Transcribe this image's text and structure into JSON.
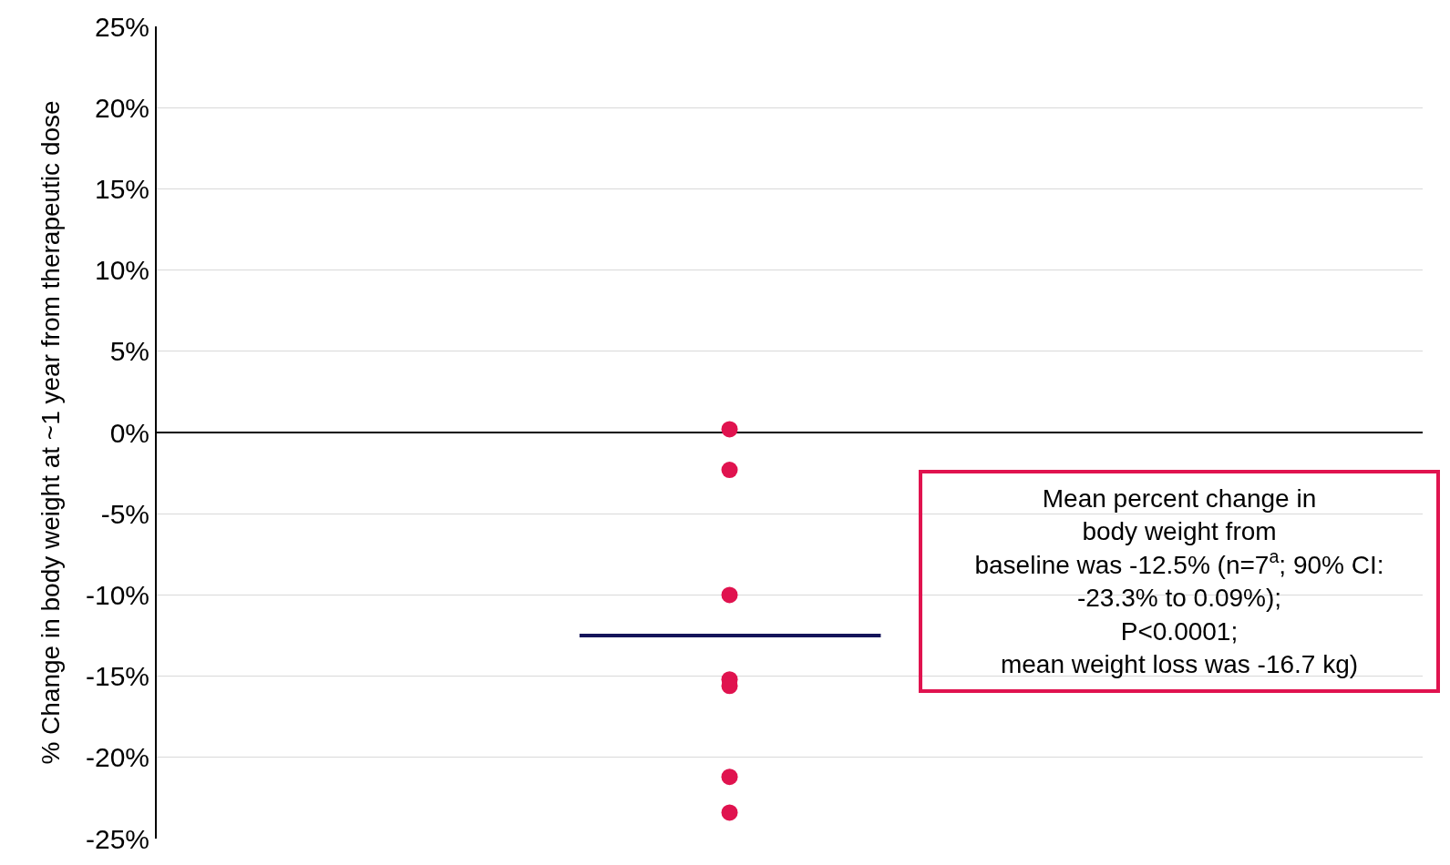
{
  "chart_data": {
    "type": "scatter",
    "ylabel": "% Change in body weight at ~1 year from therapeutic dose",
    "categories": [
      null
    ],
    "tick_labels": "y",
    "series": [
      {
        "color": "#e0134f",
        "values": [
          0.2
        ]
      },
      {
        "color": "#e0134f",
        "values": [
          -2.3
        ]
      },
      {
        "color": "#e0134f",
        "values": [
          -10.0
        ]
      },
      {
        "color": "#e0134f",
        "values": [
          -15.2
        ]
      },
      {
        "color": "#e0134f",
        "values": [
          -15.6
        ]
      },
      {
        "color": "#e0134f",
        "values": [
          -21.2
        ]
      },
      {
        "color": "#e0134f",
        "values": [
          -23.4
        ]
      }
    ],
    "marker": "circle",
    "ylim": [
      -25,
      25
    ],
    "yticks": [
      {
        "value": -25,
        "label": "-25%"
      },
      {
        "value": -20,
        "label": "-20%"
      },
      {
        "value": -15,
        "label": "-15%"
      },
      {
        "value": -10,
        "label": "-10%"
      },
      {
        "value": -5,
        "label": "-5%"
      },
      {
        "value": 0,
        "label": "0%"
      },
      {
        "value": 5,
        "label": "5%"
      },
      {
        "value": 10,
        "label": "10%"
      },
      {
        "value": 15,
        "label": "15%"
      },
      {
        "value": 20,
        "label": "20%"
      },
      {
        "value": 25,
        "label": "25%"
      }
    ],
    "grid": "y",
    "ref_lines": [
      {
        "axis": "y",
        "value": -12.5,
        "color": "#14145a"
      }
    ],
    "annotations": [
      "Mean percent change in\nbody weight from\nbaseline was -12.5% (n=7$^{a}$; 90% CI:\n-23.3% to 0.09%);\nP<0.0001;\nmean weight loss was -16.7 kg)"
    ]
  }
}
